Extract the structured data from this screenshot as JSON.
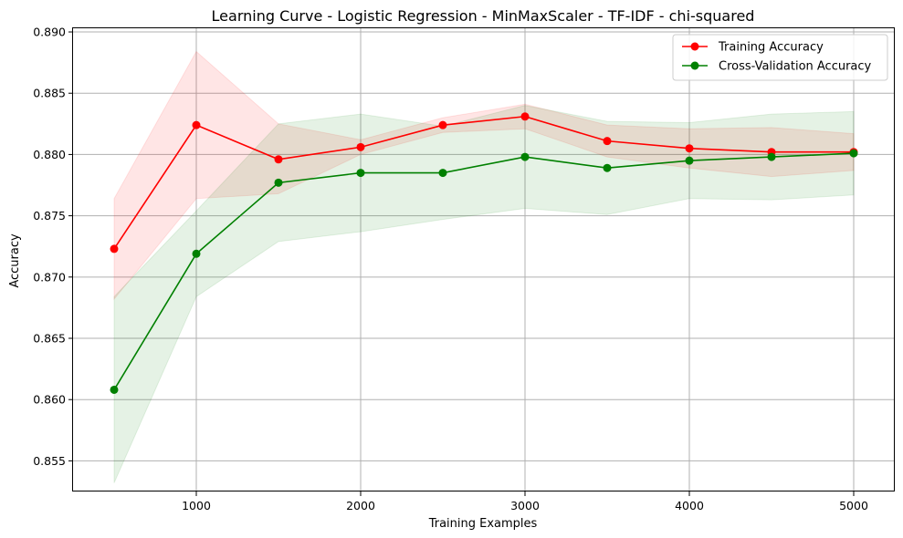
{
  "chart_data": {
    "type": "line",
    "title": "Learning Curve - Logistic Regression - MinMaxScaler - TF-IDF - chi-squared",
    "xlabel": "Training Examples",
    "ylabel": "Accuracy",
    "xlim": [
      250,
      5250
    ],
    "ylim": [
      0.8525,
      0.8903
    ],
    "xticks": [
      1000,
      2000,
      3000,
      4000,
      5000
    ],
    "yticks": [
      0.855,
      0.86,
      0.865,
      0.87,
      0.875,
      0.88,
      0.885,
      0.89
    ],
    "grid": true,
    "legend_position": "top-right",
    "x": [
      500,
      1000,
      1500,
      2000,
      2500,
      3000,
      3500,
      4000,
      4500,
      5000
    ],
    "series": [
      {
        "name": "Training Accuracy",
        "color": "#ff0000",
        "band_color": "#ff0000",
        "values": [
          0.8723,
          0.8824,
          0.8796,
          0.8806,
          0.8824,
          0.8831,
          0.8811,
          0.8805,
          0.8802,
          0.8802
        ],
        "band_upper": [
          0.8764,
          0.8884,
          0.8825,
          0.8812,
          0.883,
          0.8841,
          0.8824,
          0.8821,
          0.8822,
          0.8817
        ],
        "band_lower": [
          0.8682,
          0.8764,
          0.8768,
          0.88,
          0.8818,
          0.8821,
          0.8798,
          0.8789,
          0.8782,
          0.8787
        ]
      },
      {
        "name": "Cross-Validation Accuracy",
        "color": "#008000",
        "band_color": "#008000",
        "values": [
          0.8608,
          0.8719,
          0.8777,
          0.8785,
          0.8785,
          0.8798,
          0.8789,
          0.8795,
          0.8798,
          0.8801
        ],
        "band_upper": [
          0.8684,
          0.8754,
          0.8825,
          0.8833,
          0.8823,
          0.884,
          0.8827,
          0.8826,
          0.8833,
          0.8835
        ],
        "band_lower": [
          0.8532,
          0.8684,
          0.8729,
          0.8737,
          0.8747,
          0.8756,
          0.8751,
          0.8764,
          0.8763,
          0.8767
        ]
      }
    ]
  }
}
